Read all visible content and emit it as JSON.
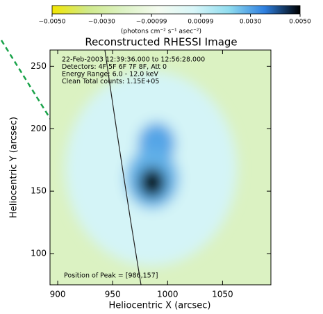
{
  "chart_data": {
    "type": "image",
    "title": "Reconstructed RHESSI Image",
    "xlabel": "Heliocentric X (arcsec)",
    "ylabel": "Heliocentric Y (arcsec)",
    "xlim": [
      893,
      1094
    ],
    "xticks": [
      900,
      950,
      1000,
      1050
    ],
    "ylim": [
      75,
      263
    ],
    "yticks": [
      100,
      150,
      200,
      250
    ],
    "annotations": [
      "22-Feb-2003 12:39:36.000 to 12:56:28.000",
      "Detectors: 4F 5F 6F 7F 8F, Att 0",
      "Energy Range: 6.0 - 12.0 keV",
      "Clean    Total counts: 1.15E+05"
    ],
    "peak_label": "Position of Peak = [986,157]",
    "colorbar": {
      "label": "(photons cm⁻² s⁻¹ asec⁻²)",
      "lim": [
        -0.005,
        0.005
      ],
      "ticks": [
        {
          "value": -0.005,
          "label": "−0.0050"
        },
        {
          "value": -0.003,
          "label": "−0.0030"
        },
        {
          "value": -0.00099,
          "label": "−0.00099"
        },
        {
          "value": 0.00099,
          "label": "0.00099"
        },
        {
          "value": 0.003,
          "label": "0.0030"
        },
        {
          "value": 0.005,
          "label": "0.0050"
        }
      ],
      "colors": [
        "#f2e600",
        "#cfe98a",
        "#dcf2c4",
        "#f4fbf0",
        "#d8f6f8",
        "#8fdcef",
        "#2e7fe0",
        "#000000"
      ]
    },
    "background": -0.0022,
    "sources": [
      {
        "x": 985,
        "y": 168,
        "r": 78,
        "value": 0.0008
      },
      {
        "x": 990,
        "y": 188,
        "r": 17,
        "value": 0.003
      },
      {
        "x": 986,
        "y": 160,
        "r": 24,
        "value": 0.0028
      },
      {
        "x": 986,
        "y": 157,
        "r": 12,
        "value": 0.0049
      }
    ]
  }
}
